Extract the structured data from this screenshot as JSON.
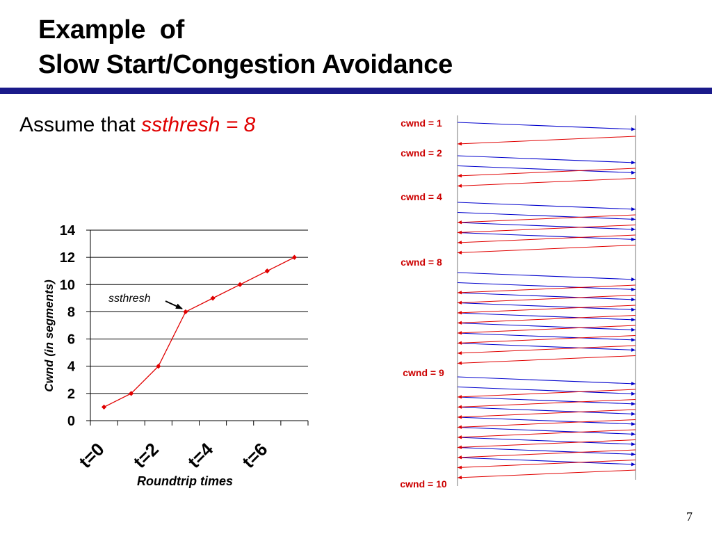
{
  "slide": {
    "title_line1": "Example  of",
    "title_line2": "Slow Start/Congestion Avoidance",
    "assume_prefix": "Assume that ",
    "assume_highlight": "ssthresh = 8",
    "page_number": "7"
  },
  "colors": {
    "title_rule": "#1a1a8a",
    "highlight": "#e00000",
    "series": "#e00000",
    "data_arrow": "#0000cc",
    "ack_arrow": "#e00000",
    "cwnd_label": "#cc0000",
    "grid": "#000000"
  },
  "chart_data": {
    "type": "line",
    "xlabel": "Roundtrip times",
    "ylabel": "Cwnd (in segments)",
    "ylim": [
      0,
      14
    ],
    "yticks": [
      0,
      2,
      4,
      6,
      8,
      10,
      12,
      14
    ],
    "grid": true,
    "x_tick_labels": [
      "t=0",
      "t=2",
      "t=4",
      "t=6"
    ],
    "x_tick_label_values": [
      0,
      2,
      4,
      6
    ],
    "xlim": [
      -0.5,
      7.5
    ],
    "series": [
      {
        "x": [
          0,
          1,
          2,
          3,
          4,
          5,
          6,
          7
        ],
        "values": [
          1,
          2,
          4,
          8,
          9,
          10,
          11,
          12
        ]
      }
    ],
    "annotation": {
      "text": "ssthresh",
      "x": 3,
      "y": 8
    }
  },
  "sequence": {
    "rounds": [
      {
        "label": "cwnd = 1",
        "segments": 1
      },
      {
        "label": "cwnd = 2",
        "segments": 2
      },
      {
        "label": "cwnd = 4",
        "segments": 4
      },
      {
        "label": "cwnd = 8",
        "segments": 8
      },
      {
        "label": "cwnd = 9",
        "segments": 9
      },
      {
        "label": "cwnd = 10",
        "segments": 0
      }
    ]
  }
}
